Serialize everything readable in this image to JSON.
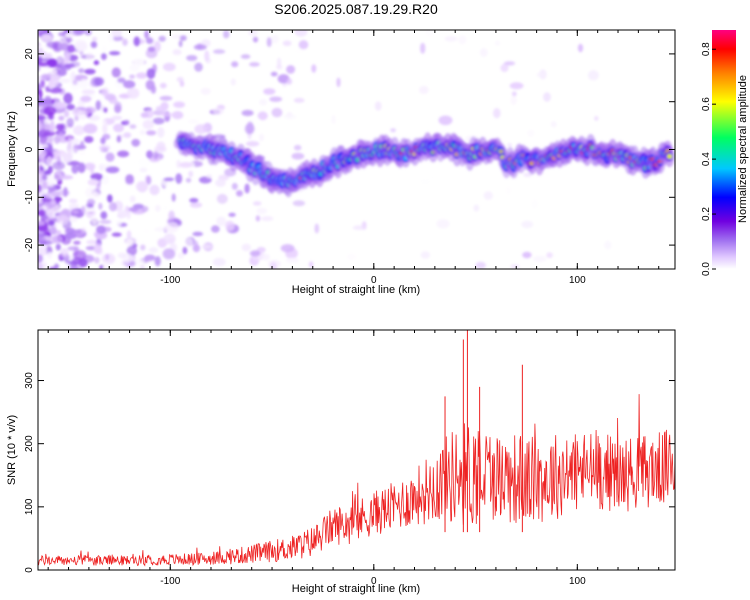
{
  "chart_data": [
    {
      "type": "heatmap",
      "title": "S206.2025.087.19.29.R20",
      "xlabel": "Height of straight line (km)",
      "ylabel": "Frequency (Hz)",
      "xlim": [
        -165,
        148
      ],
      "ylim": [
        -25,
        25
      ],
      "x_ticks": [
        -100,
        0,
        100
      ],
      "y_ticks": [
        -20,
        -10,
        0,
        10,
        20
      ],
      "colorbar": {
        "label": "Normalized spectral amplitude",
        "range": [
          0,
          0.87
        ],
        "ticks": [
          0.0,
          0.2,
          0.4,
          0.6,
          0.8
        ],
        "colormap": [
          "#ffffff",
          "#e6ccff",
          "#a06cf0",
          "#7a00e6",
          "#0000ff",
          "#00c8ff",
          "#00ff80",
          "#ffff00",
          "#ff8000",
          "#ff0000",
          "#ff0080"
        ]
      },
      "ridge": {
        "description_x": [
          -95,
          -80,
          -65,
          -55,
          -45,
          -35,
          -25,
          -15,
          -5,
          5,
          15,
          25,
          35,
          45,
          55,
          62,
          65,
          75,
          85,
          95,
          105,
          115,
          125,
          135,
          145
        ],
        "frequency": [
          2,
          0,
          -2,
          -5,
          -7,
          -6,
          -4,
          -2,
          -1,
          0,
          -1,
          0,
          1,
          -1,
          0,
          0,
          -3,
          -2,
          -2,
          0,
          0,
          -1,
          -2,
          -3,
          -1
        ]
      }
    },
    {
      "type": "line",
      "xlabel": "Height of straight line (km)",
      "ylabel": "SNR (10 * v/v)",
      "xlim": [
        -165,
        148
      ],
      "ylim": [
        0,
        380
      ],
      "x_ticks": [
        -100,
        0,
        100
      ],
      "y_ticks": [
        0,
        100,
        200,
        300
      ],
      "color": "#ee2222",
      "envelope": {
        "x": [
          -165,
          -120,
          -80,
          -60,
          -40,
          -30,
          -20,
          -10,
          0,
          10,
          20,
          30,
          40,
          50,
          60,
          70,
          80,
          90,
          100,
          110,
          120,
          130,
          140,
          148
        ],
        "mean": [
          15,
          15,
          18,
          25,
          35,
          45,
          70,
          75,
          90,
          100,
          115,
          135,
          150,
          155,
          150,
          145,
          140,
          150,
          155,
          160,
          150,
          155,
          160,
          165
        ],
        "spread": [
          8,
          8,
          10,
          15,
          20,
          25,
          30,
          35,
          35,
          40,
          45,
          60,
          80,
          90,
          70,
          75,
          70,
          70,
          65,
          65,
          60,
          60,
          60,
          60
        ]
      },
      "peaks": [
        {
          "x": 44,
          "y": 365
        },
        {
          "x": 46,
          "y": 380
        },
        {
          "x": 73,
          "y": 325
        },
        {
          "x": 35,
          "y": 275
        },
        {
          "x": 52,
          "y": 290
        }
      ]
    }
  ]
}
